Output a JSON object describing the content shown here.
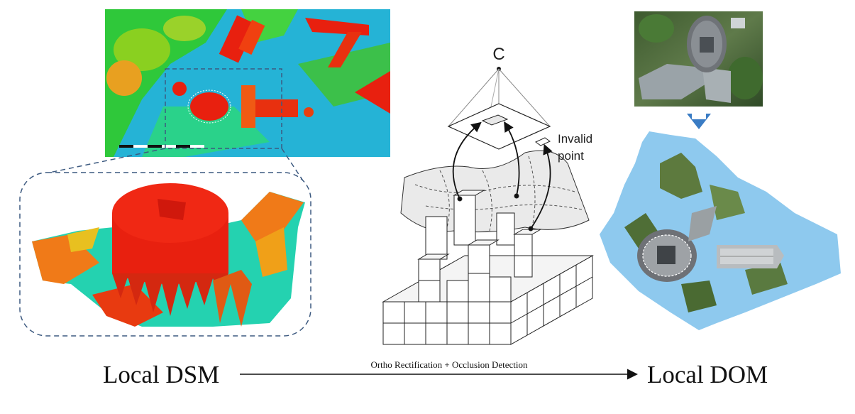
{
  "left_label": "Local DSM",
  "right_label": "Local DOM",
  "process_label": "Ortho Rectification + Occlusion Detection",
  "camera_label": "C",
  "invalid_point_label_line1": "Invalid",
  "invalid_point_label_line2": "point",
  "colors": {
    "dsm_red": "#e8200f",
    "dsm_orange": "#f07a18",
    "dsm_green": "#33cc33",
    "dsm_cyan": "#1fd0c0",
    "dsm_blue": "#1e90ff",
    "dom_sky": "#8ec9ee",
    "dashed_outline": "#3d5a80",
    "arrow_blue": "#3a7cc4"
  }
}
